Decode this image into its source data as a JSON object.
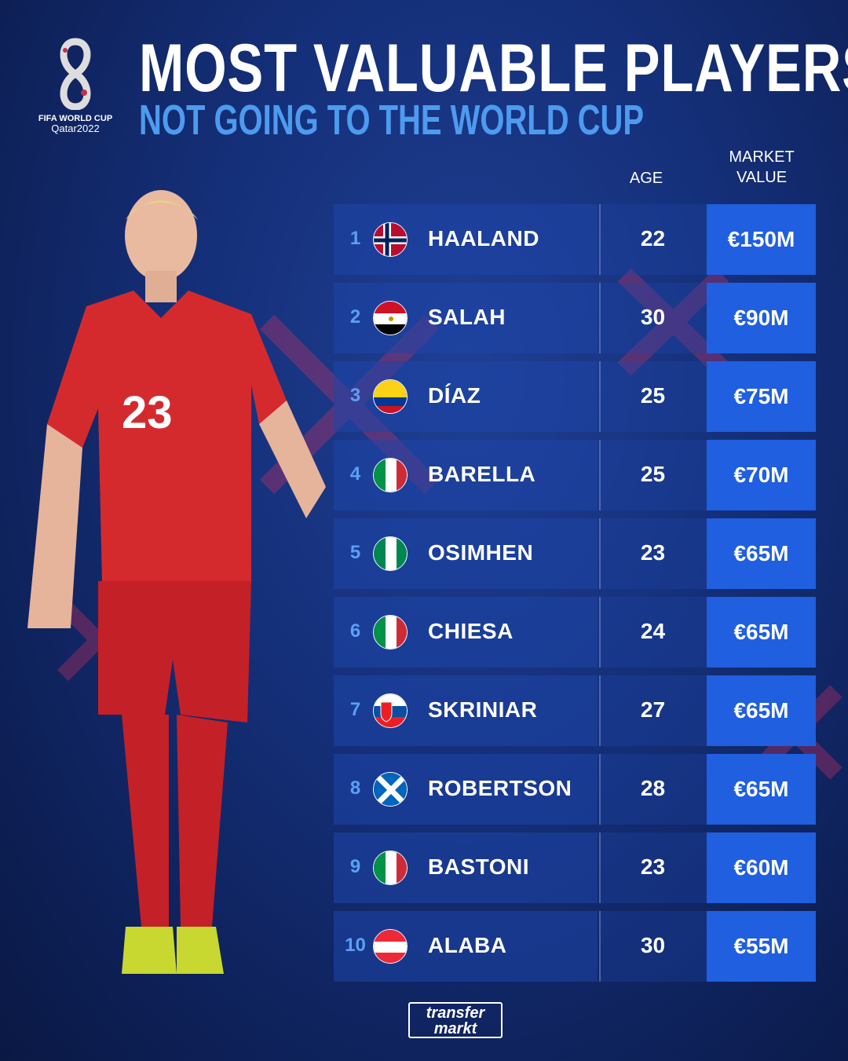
{
  "logo": {
    "line1": "FIFA WORLD CUP",
    "line2": "Qatar2022"
  },
  "title": "MOST VALUABLE PLAYERS",
  "subtitle": "NOT GOING TO THE WORLD CUP",
  "headers": {
    "age": "AGE",
    "market_value_1": "MARKET",
    "market_value_2": "VALUE"
  },
  "colors": {
    "background": "#15307a",
    "accent": "#4d9bf0",
    "value_box": "#1f5fe0"
  },
  "players": [
    {
      "rank": "1",
      "flag": "norway",
      "name": "HAALAND",
      "age": "22",
      "value": "€150M"
    },
    {
      "rank": "2",
      "flag": "egypt",
      "name": "SALAH",
      "age": "30",
      "value": "€90M"
    },
    {
      "rank": "3",
      "flag": "colombia",
      "name": "DÍAZ",
      "age": "25",
      "value": "€75M"
    },
    {
      "rank": "4",
      "flag": "italy",
      "name": "BARELLA",
      "age": "25",
      "value": "€70M"
    },
    {
      "rank": "5",
      "flag": "nigeria",
      "name": "OSIMHEN",
      "age": "23",
      "value": "€65M"
    },
    {
      "rank": "6",
      "flag": "italy",
      "name": "CHIESA",
      "age": "24",
      "value": "€65M"
    },
    {
      "rank": "7",
      "flag": "slovakia",
      "name": "SKRINIAR",
      "age": "27",
      "value": "€65M"
    },
    {
      "rank": "8",
      "flag": "scotland",
      "name": "ROBERTSON",
      "age": "28",
      "value": "€65M"
    },
    {
      "rank": "9",
      "flag": "italy",
      "name": "BASTONI",
      "age": "23",
      "value": "€60M"
    },
    {
      "rank": "10",
      "flag": "austria",
      "name": "ALABA",
      "age": "30",
      "value": "€55M"
    }
  ],
  "footer": {
    "brand_line1": "transfer",
    "brand_line2": "markt"
  }
}
